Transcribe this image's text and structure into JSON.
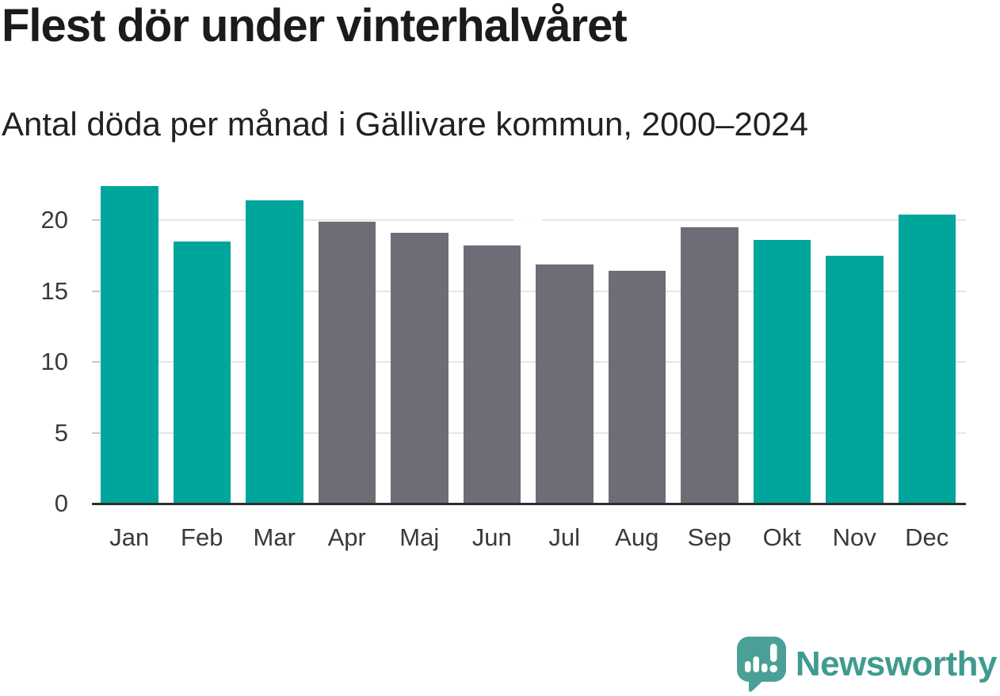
{
  "header": {
    "title": "Flest dör under vinterhalvåret",
    "subtitle": "Antal döda per månad i Gällivare kommun, 2000–2024"
  },
  "chart_data": {
    "type": "bar",
    "title": "Flest dör under vinterhalvåret",
    "subtitle": "Antal döda per månad i Gällivare kommun, 2000–2024",
    "categories": [
      "Jan",
      "Feb",
      "Mar",
      "Apr",
      "Maj",
      "Jun",
      "Jul",
      "Aug",
      "Sep",
      "Okt",
      "Nov",
      "Dec"
    ],
    "values": [
      22.4,
      18.5,
      21.4,
      19.9,
      19.1,
      18.2,
      16.9,
      16.4,
      19.5,
      18.6,
      17.5,
      20.4
    ],
    "seasons": [
      "winter",
      "winter",
      "winter",
      "summer",
      "summer",
      "summer",
      "summer",
      "summer",
      "summer",
      "winter",
      "winter",
      "winter"
    ],
    "colors": {
      "winter": "#00a59b",
      "summer": "#6e6d77"
    },
    "xlabel": "",
    "ylabel": "",
    "ylim": [
      0,
      23.8
    ],
    "yticks": [
      0,
      5,
      10,
      15,
      20
    ],
    "grid": true,
    "legend": "none"
  },
  "footer": {
    "brand": "Newsworthy",
    "brand_color": "#3f9b90",
    "logo_bubble_color": "#4aa096",
    "logo_icon": "speech-bubble-bar-chart-exclamation-icon"
  }
}
